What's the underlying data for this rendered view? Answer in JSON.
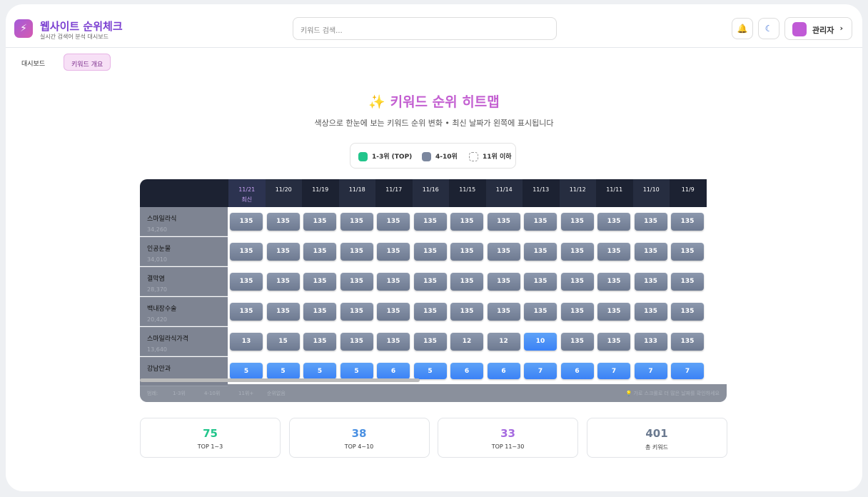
{
  "header": {
    "title": "웹사이트 순위체크",
    "subtitle": "실시간 검색어 분석 대시보드",
    "search_placeholder": "키워드 검색...",
    "user": "관리자"
  },
  "tabs": [
    "대시보드",
    "키워드 개요"
  ],
  "heatmap": {
    "title": "✨ 키워드 순위 히트맵",
    "description": "색상으로 한눈에 보는 키워드 순위 변화 • 최신 날짜가 왼쪽에 표시됩니다",
    "legend": [
      "1-3위 (TOP)",
      "4-10위",
      "11위 이하"
    ],
    "latest_label": "최신",
    "dates": [
      "11/21",
      "11/20",
      "11/19",
      "11/18",
      "11/17",
      "11/16",
      "11/15",
      "11/14",
      "11/13",
      "11/12",
      "11/11",
      "11/10",
      "11/9"
    ],
    "rows": [
      {
        "keyword": "스마일라식",
        "volume": "34,260",
        "ranks": [
          135,
          135,
          135,
          135,
          135,
          135,
          135,
          135,
          135,
          135,
          135,
          135,
          135
        ]
      },
      {
        "keyword": "인공눈물",
        "volume": "34,010",
        "ranks": [
          135,
          135,
          135,
          135,
          135,
          135,
          135,
          135,
          135,
          135,
          135,
          135,
          135
        ]
      },
      {
        "keyword": "결막염",
        "volume": "28,370",
        "ranks": [
          135,
          135,
          135,
          135,
          135,
          135,
          135,
          135,
          135,
          135,
          135,
          135,
          135
        ]
      },
      {
        "keyword": "백내장수술",
        "volume": "20,420",
        "ranks": [
          135,
          135,
          135,
          135,
          135,
          135,
          135,
          135,
          135,
          135,
          135,
          135,
          135
        ]
      },
      {
        "keyword": "스마일라식가격",
        "volume": "13,640",
        "ranks": [
          13,
          15,
          135,
          135,
          135,
          135,
          12,
          12,
          10,
          135,
          135,
          133,
          135
        ]
      },
      {
        "keyword": "강남안과",
        "ranks": [
          5,
          5,
          5,
          5,
          6,
          5,
          6,
          6,
          7,
          6,
          7,
          7,
          7
        ]
      }
    ],
    "footer_legend": {
      "label": "범례:",
      "items": [
        "1-3위",
        "4-10위",
        "11위+",
        "순위없음"
      ]
    },
    "scroll_hint": "💡 가로 스크롤로 더 많은 날짜를 확인하세요"
  },
  "stats": [
    {
      "value": 75,
      "label": "TOP 1~3",
      "color": "#22c58b"
    },
    {
      "value": 38,
      "label": "TOP 4~10",
      "color": "#4a90e2"
    },
    {
      "value": 33,
      "label": "TOP 11~30",
      "color": "#a66be0"
    },
    {
      "value": 401,
      "label": "총 키워드",
      "color": "#6b7a90"
    }
  ]
}
